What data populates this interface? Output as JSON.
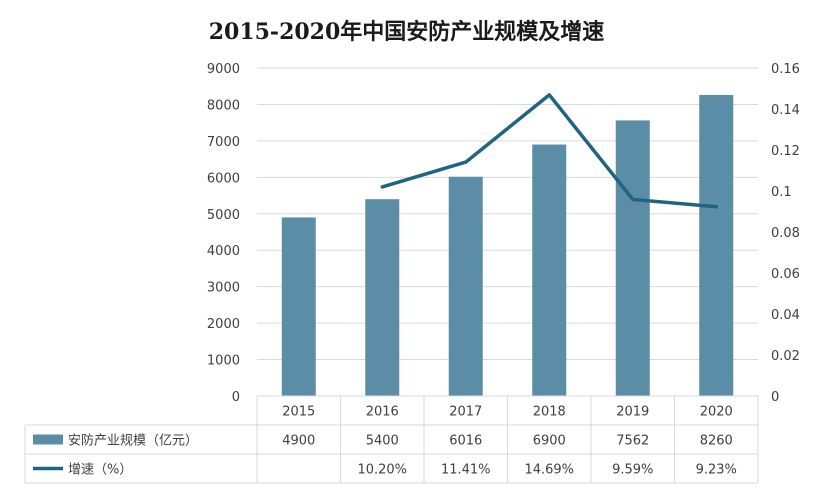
{
  "chart_data": {
    "type": "bar",
    "title": "2015-2020年中国安防产业规模及增速",
    "categories": [
      "2015",
      "2016",
      "2017",
      "2018",
      "2019",
      "2020"
    ],
    "series": [
      {
        "name": "安防产业规模（亿元）",
        "type": "bar",
        "axis": "left",
        "color": "#5b8ea6",
        "values": [
          4900,
          5400,
          6016,
          6900,
          7562,
          8260
        ],
        "labels": [
          "4900",
          "5400",
          "6016",
          "6900",
          "7562",
          "8260"
        ]
      },
      {
        "name": "增速（%）",
        "type": "line",
        "axis": "right",
        "color": "#1f6582",
        "values": [
          null,
          0.102,
          0.1141,
          0.1469,
          0.0959,
          0.0923
        ],
        "labels": [
          "",
          "10.20%",
          "11.41%",
          "14.69%",
          "9.59%",
          "9.23%"
        ]
      }
    ],
    "y_left": {
      "min": 0,
      "max": 9000,
      "ticks": [
        "0",
        "1000",
        "2000",
        "3000",
        "4000",
        "5000",
        "6000",
        "7000",
        "8000",
        "9000"
      ]
    },
    "y_right": {
      "min": 0,
      "max": 0.16,
      "ticks": [
        "0",
        "0.02",
        "0.04",
        "0.06",
        "0.08",
        "0.1",
        "0.12",
        "0.14",
        "0.16"
      ]
    },
    "grid": true,
    "legend": "data-table-below"
  }
}
